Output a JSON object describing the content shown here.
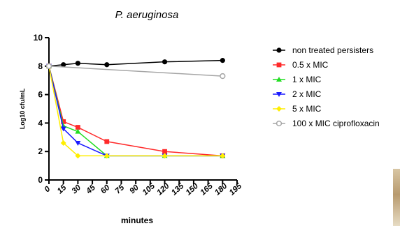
{
  "chart_data": {
    "type": "line",
    "title": "P. aeruginosa",
    "xlabel": "minutes",
    "ylabel": "Log10 cfu/mL",
    "xlim": [
      0,
      195
    ],
    "ylim": [
      0,
      10
    ],
    "xticks": [
      "0",
      "15",
      "30",
      "45",
      "60",
      "75",
      "90",
      "105",
      "120",
      "135",
      "150",
      "165",
      "180",
      "195"
    ],
    "yticks": [
      "0",
      "2",
      "4",
      "6",
      "8",
      "10"
    ],
    "grid": false,
    "legend_position": "right",
    "series": [
      {
        "name": "non treated persisters",
        "color": "#000000",
        "marker": "circle-filled",
        "x": [
          0,
          15,
          30,
          60,
          120,
          180
        ],
        "y": [
          8.0,
          8.1,
          8.2,
          8.1,
          8.3,
          8.4
        ]
      },
      {
        "name": "0.5 x MIC",
        "color": "#ff2a2a",
        "marker": "square",
        "x": [
          0,
          15,
          30,
          60,
          120,
          180
        ],
        "y": [
          8.0,
          4.1,
          3.7,
          2.7,
          2.0,
          1.7
        ]
      },
      {
        "name": "1 x MIC",
        "color": "#22dd22",
        "marker": "triangle-up",
        "x": [
          0,
          15,
          30,
          60,
          120,
          180
        ],
        "y": [
          8.0,
          3.8,
          3.4,
          1.7,
          1.7,
          1.7
        ]
      },
      {
        "name": "2 x MIC",
        "color": "#1a1aff",
        "marker": "triangle-down",
        "x": [
          0,
          15,
          30,
          60,
          120,
          180
        ],
        "y": [
          8.0,
          3.6,
          2.6,
          1.7,
          1.7,
          1.7
        ]
      },
      {
        "name": "5 x MIC",
        "color": "#ffee00",
        "marker": "diamond",
        "x": [
          0,
          15,
          30,
          60,
          120,
          180
        ],
        "y": [
          8.0,
          2.6,
          1.7,
          1.7,
          1.7,
          1.7
        ]
      },
      {
        "name": "100 x MIC ciprofloxacin",
        "color": "#a6a6a6",
        "marker": "circle-open",
        "x": [
          0,
          180
        ],
        "y": [
          8.0,
          7.3
        ]
      }
    ]
  }
}
